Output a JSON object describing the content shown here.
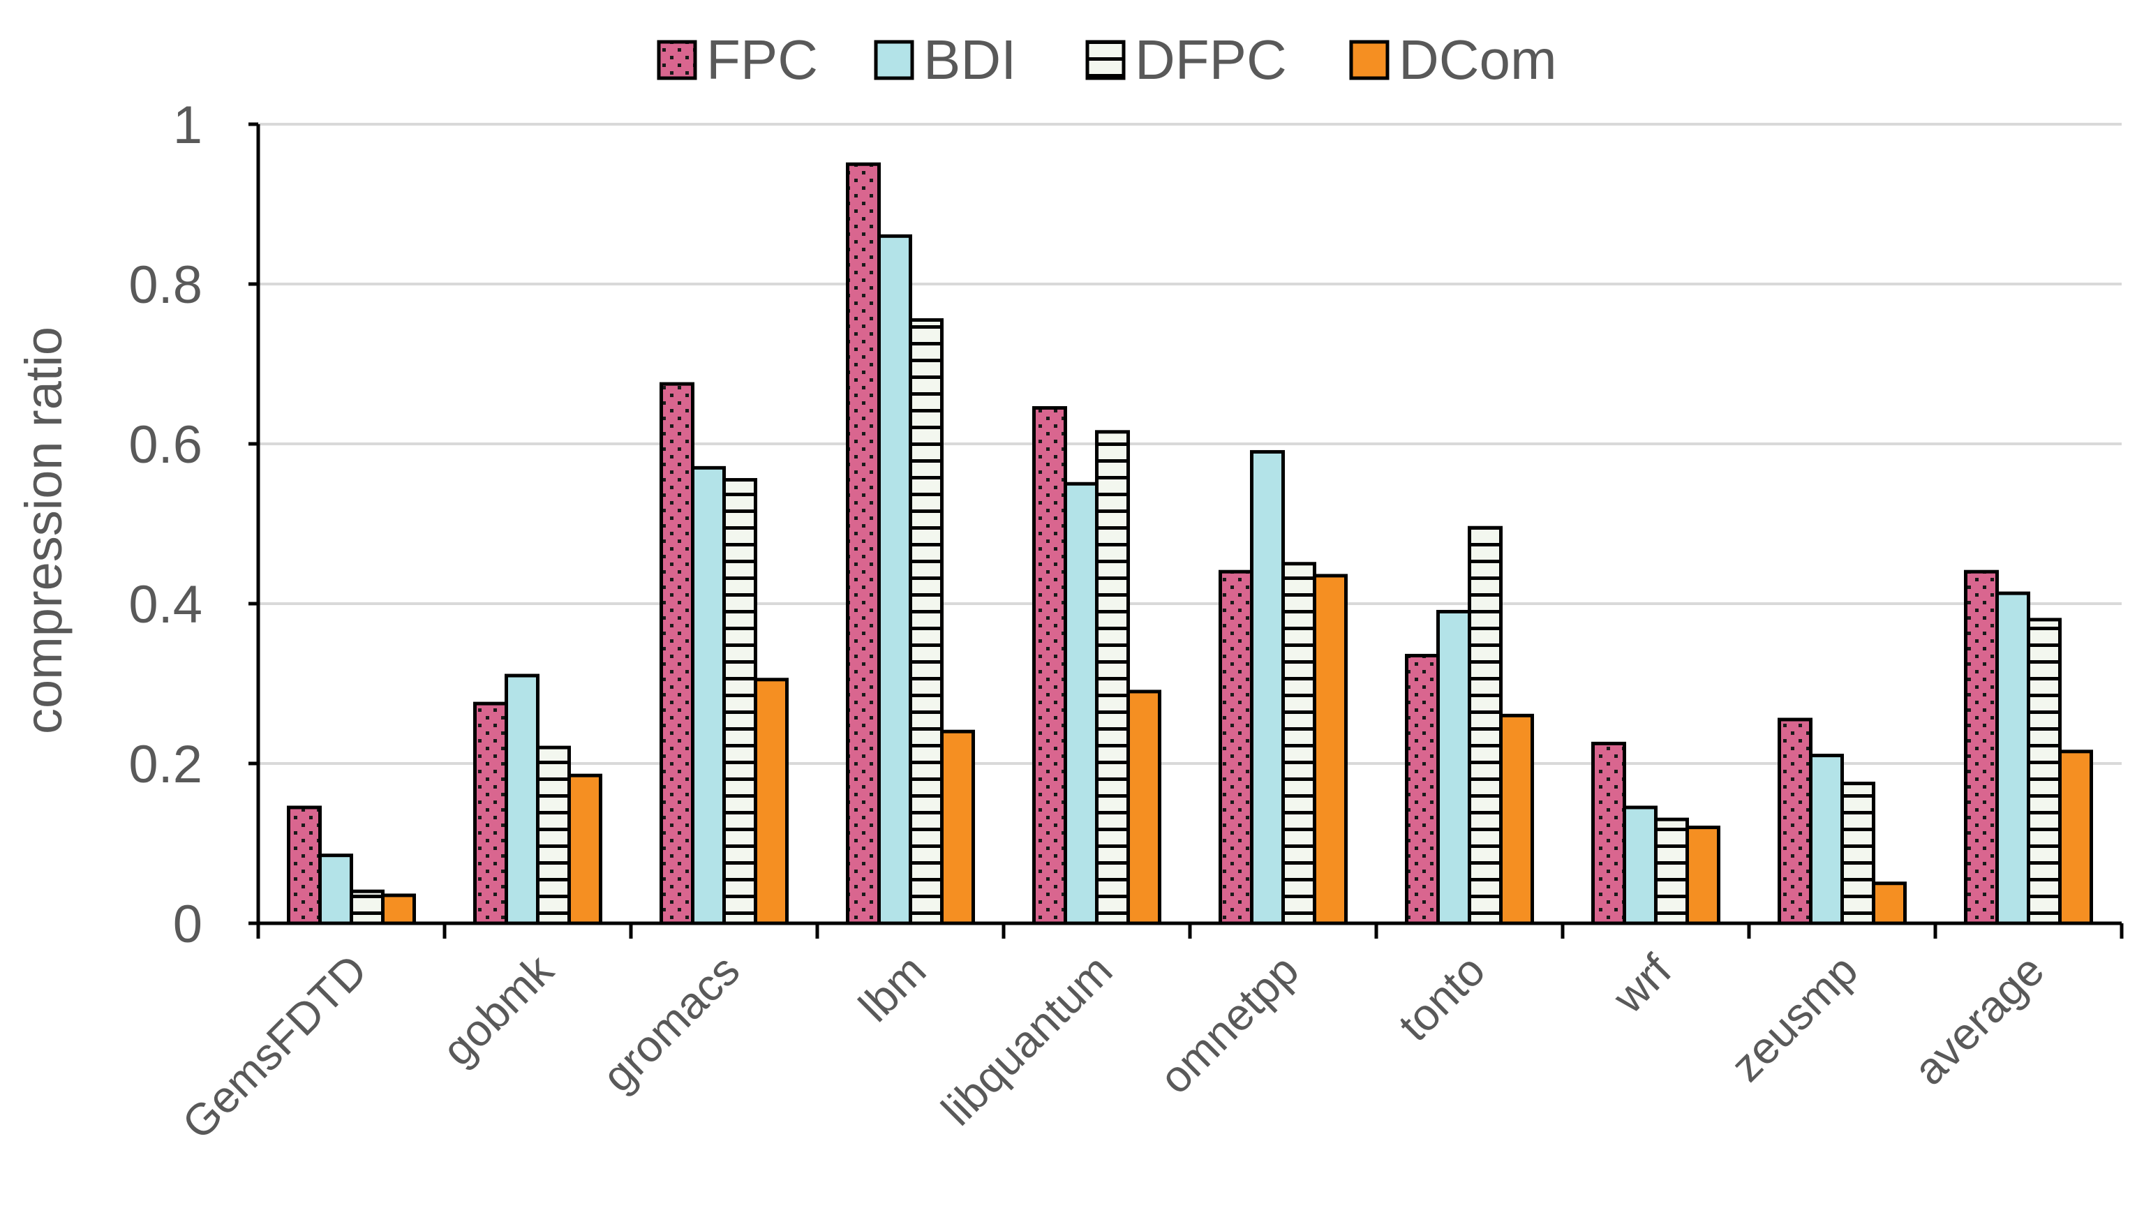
{
  "chart_data": {
    "type": "bar",
    "title": "",
    "xlabel": "",
    "ylabel": "compression ratio",
    "ylim": [
      0,
      1
    ],
    "yticks": [
      "0",
      "0.2",
      "0.4",
      "0.6",
      "0.8",
      "1"
    ],
    "grid": true,
    "legend_position": "top-center",
    "categories": [
      "GemsFDTD",
      "gobmk",
      "gromacs",
      "lbm",
      "libquantum",
      "omnetpp",
      "tonto",
      "wrf",
      "zeusmp",
      "average"
    ],
    "series": [
      {
        "name": "FPC",
        "color": "#d9668f",
        "pattern": "dots",
        "values": [
          0.145,
          0.275,
          0.675,
          0.95,
          0.645,
          0.44,
          0.335,
          0.225,
          0.255,
          0.44
        ]
      },
      {
        "name": "BDI",
        "color": "#b3e3e8",
        "pattern": "solid",
        "values": [
          0.085,
          0.31,
          0.57,
          0.86,
          0.55,
          0.59,
          0.39,
          0.145,
          0.21,
          0.413
        ]
      },
      {
        "name": "DFPC",
        "color": "#f3f7ef",
        "pattern": "horizontal-lines",
        "values": [
          0.04,
          0.22,
          0.555,
          0.755,
          0.615,
          0.45,
          0.495,
          0.13,
          0.175,
          0.38
        ]
      },
      {
        "name": "DCom",
        "color": "#f58f22",
        "pattern": "solid",
        "values": [
          0.035,
          0.185,
          0.305,
          0.24,
          0.29,
          0.435,
          0.26,
          0.12,
          0.05,
          0.215
        ]
      }
    ]
  }
}
